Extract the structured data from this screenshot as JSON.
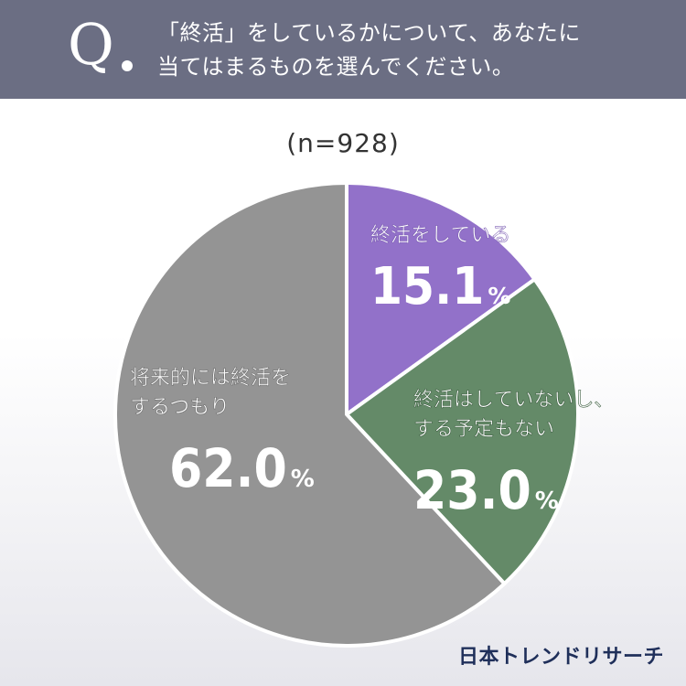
{
  "header": {
    "q_mark": "Q",
    "question_line1": "「終活」をしているかについて、あなたに",
    "question_line2": "当てはまるものを選んでください。"
  },
  "sample_size": "(n=928)",
  "brand": "日本トレンドリサーチ",
  "chart_data": {
    "type": "pie",
    "title": "",
    "slices": [
      {
        "label_lines": [
          "終活をしている"
        ],
        "value": 15.1,
        "value_text": "15.1",
        "unit": "%",
        "color": "#9271c9"
      },
      {
        "label_lines": [
          "終活はしていないし、",
          "する予定もない"
        ],
        "value": 23.0,
        "value_text": "23.0",
        "unit": "%",
        "color": "#648a68"
      },
      {
        "label_lines": [
          "将来的には終活を",
          "するつもり"
        ],
        "value": 62.0,
        "value_text": "62.0",
        "unit": "%",
        "color": "#949494"
      }
    ],
    "start_angle": "12 o'clock",
    "direction": "clockwise",
    "legend": "none"
  }
}
